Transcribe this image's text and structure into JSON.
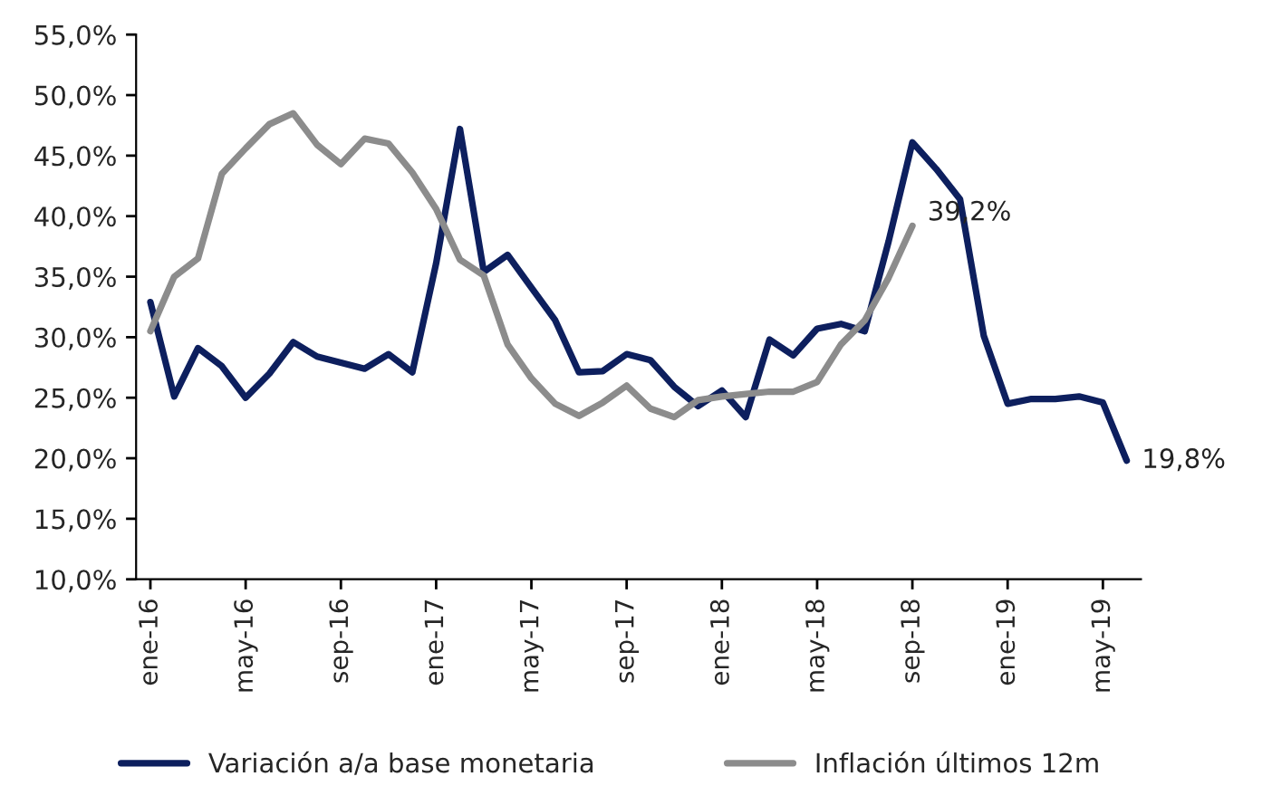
{
  "chart_data": {
    "type": "line",
    "categories": [
      "ene-16",
      null,
      null,
      null,
      "may-16",
      null,
      null,
      null,
      "sep-16",
      null,
      null,
      null,
      "ene-17",
      null,
      null,
      null,
      "may-17",
      null,
      null,
      null,
      "sep-17",
      null,
      null,
      null,
      "ene-18",
      null,
      null,
      null,
      "may-18",
      null,
      null,
      null,
      "sep-18",
      null,
      null,
      null,
      "ene-19",
      null,
      null,
      null,
      "may-19",
      null
    ],
    "series": [
      {
        "name": "Variación a/a base monetaria",
        "color": "#0d1f5e",
        "values": [
          32.9,
          25.1,
          29.1,
          27.6,
          25.0,
          27.0,
          29.6,
          28.4,
          27.9,
          27.4,
          28.6,
          27.1,
          36.1,
          47.2,
          35.4,
          36.8,
          34.1,
          31.4,
          27.1,
          27.2,
          28.6,
          28.1,
          25.9,
          24.3,
          25.6,
          23.4,
          29.8,
          28.5,
          30.7,
          31.1,
          30.5,
          37.9,
          46.1,
          43.9,
          41.4,
          30.1,
          24.5,
          24.9,
          24.9,
          25.1,
          24.6,
          19.8
        ],
        "value_labels": [
          null,
          null,
          null,
          null,
          null,
          null,
          null,
          null,
          null,
          null,
          null,
          null,
          null,
          null,
          null,
          null,
          null,
          null,
          null,
          null,
          null,
          null,
          null,
          null,
          null,
          null,
          null,
          null,
          null,
          null,
          null,
          null,
          null,
          null,
          null,
          null,
          null,
          null,
          null,
          null,
          null,
          "19,8%"
        ]
      },
      {
        "name": "Inflación últimos 12m",
        "color": "#8c8c8c",
        "values": [
          30.5,
          35.0,
          36.5,
          43.5,
          45.6,
          47.6,
          48.5,
          45.9,
          44.3,
          46.4,
          46.0,
          43.6,
          40.6,
          36.4,
          35.1,
          29.4,
          26.6,
          24.5,
          23.5,
          24.6,
          26.0,
          24.1,
          23.4,
          24.8,
          25.1,
          25.3,
          25.5,
          25.5,
          26.3,
          29.4,
          31.4,
          34.9,
          39.2,
          null,
          null,
          null,
          null,
          null,
          null,
          null,
          null,
          null
        ],
        "value_labels": [
          null,
          null,
          null,
          null,
          null,
          null,
          null,
          null,
          null,
          null,
          null,
          null,
          null,
          null,
          null,
          null,
          null,
          null,
          null,
          null,
          null,
          null,
          null,
          null,
          null,
          null,
          null,
          null,
          null,
          null,
          null,
          null,
          "39,2%",
          null,
          null,
          null,
          null,
          null,
          null,
          null,
          null,
          null
        ]
      }
    ],
    "ylim": [
      10,
      55
    ],
    "yticks": [
      {
        "value": 10,
        "label": "10,0%"
      },
      {
        "value": 15,
        "label": "15,0%"
      },
      {
        "value": 20,
        "label": "20,0%"
      },
      {
        "value": 25,
        "label": "25,0%"
      },
      {
        "value": 30,
        "label": "30,0%"
      },
      {
        "value": 35,
        "label": "35,0%"
      },
      {
        "value": 40,
        "label": "40,0%"
      },
      {
        "value": 45,
        "label": "45,0%"
      },
      {
        "value": 50,
        "label": "50,0%"
      },
      {
        "value": 55,
        "label": "55,0%"
      }
    ],
    "legend": "bottom",
    "grid": false,
    "marker": "none",
    "line_style": "solid"
  }
}
